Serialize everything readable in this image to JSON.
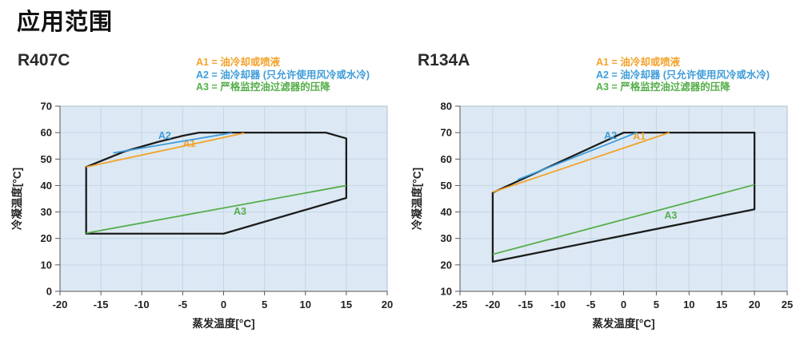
{
  "page": {
    "title": "应用范围"
  },
  "legend": {
    "items": [
      {
        "key": "a1",
        "text": "A1 = 油冷却或喷液"
      },
      {
        "key": "a2",
        "text": "A2 = 油冷却器 (只允许使用风冷或水冷)"
      },
      {
        "key": "a3",
        "text": "A3 = 严格监控油过滤器的压降"
      }
    ]
  },
  "colors": {
    "a1": "#F2A32A",
    "a2": "#3E9CD9",
    "a3": "#56AE4B",
    "envelope": "#1C1C1C",
    "plot_bg": "#DCE9F4",
    "grid": "#C5D6E3",
    "plot_border": "#AFBECB",
    "axis": "#555555"
  },
  "chart_data": [
    {
      "type": "line",
      "name": "R407C",
      "xlabel": "蒸发温度[°C]",
      "ylabel": "冷凝温度[°C]",
      "xlim": [
        -20,
        20
      ],
      "xtick_step": 5,
      "ylim": [
        0,
        70
      ],
      "ytick_step": 10,
      "grid": true,
      "envelope": [
        [
          -16.8,
          47
        ],
        [
          -12,
          53
        ],
        [
          -8,
          56.5
        ],
        [
          -5,
          58.8
        ],
        [
          -3,
          60
        ],
        [
          12.5,
          60
        ],
        [
          15,
          57.8
        ],
        [
          15,
          35.3
        ],
        [
          0,
          21.8
        ],
        [
          -16.8,
          21.8
        ]
      ],
      "series": [
        {
          "name": "A1",
          "color_key": "a1",
          "points": [
            [
              -16.8,
              47
            ],
            [
              2.5,
              59.8
            ]
          ],
          "label_pos": [
            -4.2,
            54.6
          ]
        },
        {
          "name": "A2",
          "color_key": "a2",
          "points": [
            [
              -13.5,
              52.3
            ],
            [
              1,
              59.9
            ]
          ],
          "label_pos": [
            -7.2,
            57.6
          ]
        },
        {
          "name": "A3",
          "color_key": "a3",
          "points": [
            [
              -16.8,
              22
            ],
            [
              15,
              40
            ]
          ],
          "label_pos": [
            2,
            28.9
          ]
        }
      ]
    },
    {
      "type": "line",
      "name": "R134A",
      "xlabel": "蒸发温度[°C]",
      "ylabel": "冷凝温度[°C]",
      "xlim": [
        -25,
        25
      ],
      "xtick_step": 5,
      "ylim": [
        10,
        80
      ],
      "ytick_step": 10,
      "grid": true,
      "envelope": [
        [
          -20,
          47.3
        ],
        [
          0,
          70
        ],
        [
          20,
          70
        ],
        [
          20,
          41
        ],
        [
          -20,
          21.2
        ]
      ],
      "series": [
        {
          "name": "A1",
          "color_key": "a1",
          "points": [
            [
              -20,
              47.5
            ],
            [
              7,
              70
            ]
          ],
          "label_pos": [
            2.4,
            67.4
          ]
        },
        {
          "name": "A2",
          "color_key": "a2",
          "points": [
            [
              -16.2,
              52.2
            ],
            [
              2,
              70
            ]
          ],
          "label_pos": [
            -2,
            67.6
          ]
        },
        {
          "name": "A3",
          "color_key": "a3",
          "points": [
            [
              -20,
              24
            ],
            [
              20,
              50.3
            ]
          ],
          "label_pos": [
            7.2,
            37.4
          ]
        }
      ]
    }
  ]
}
